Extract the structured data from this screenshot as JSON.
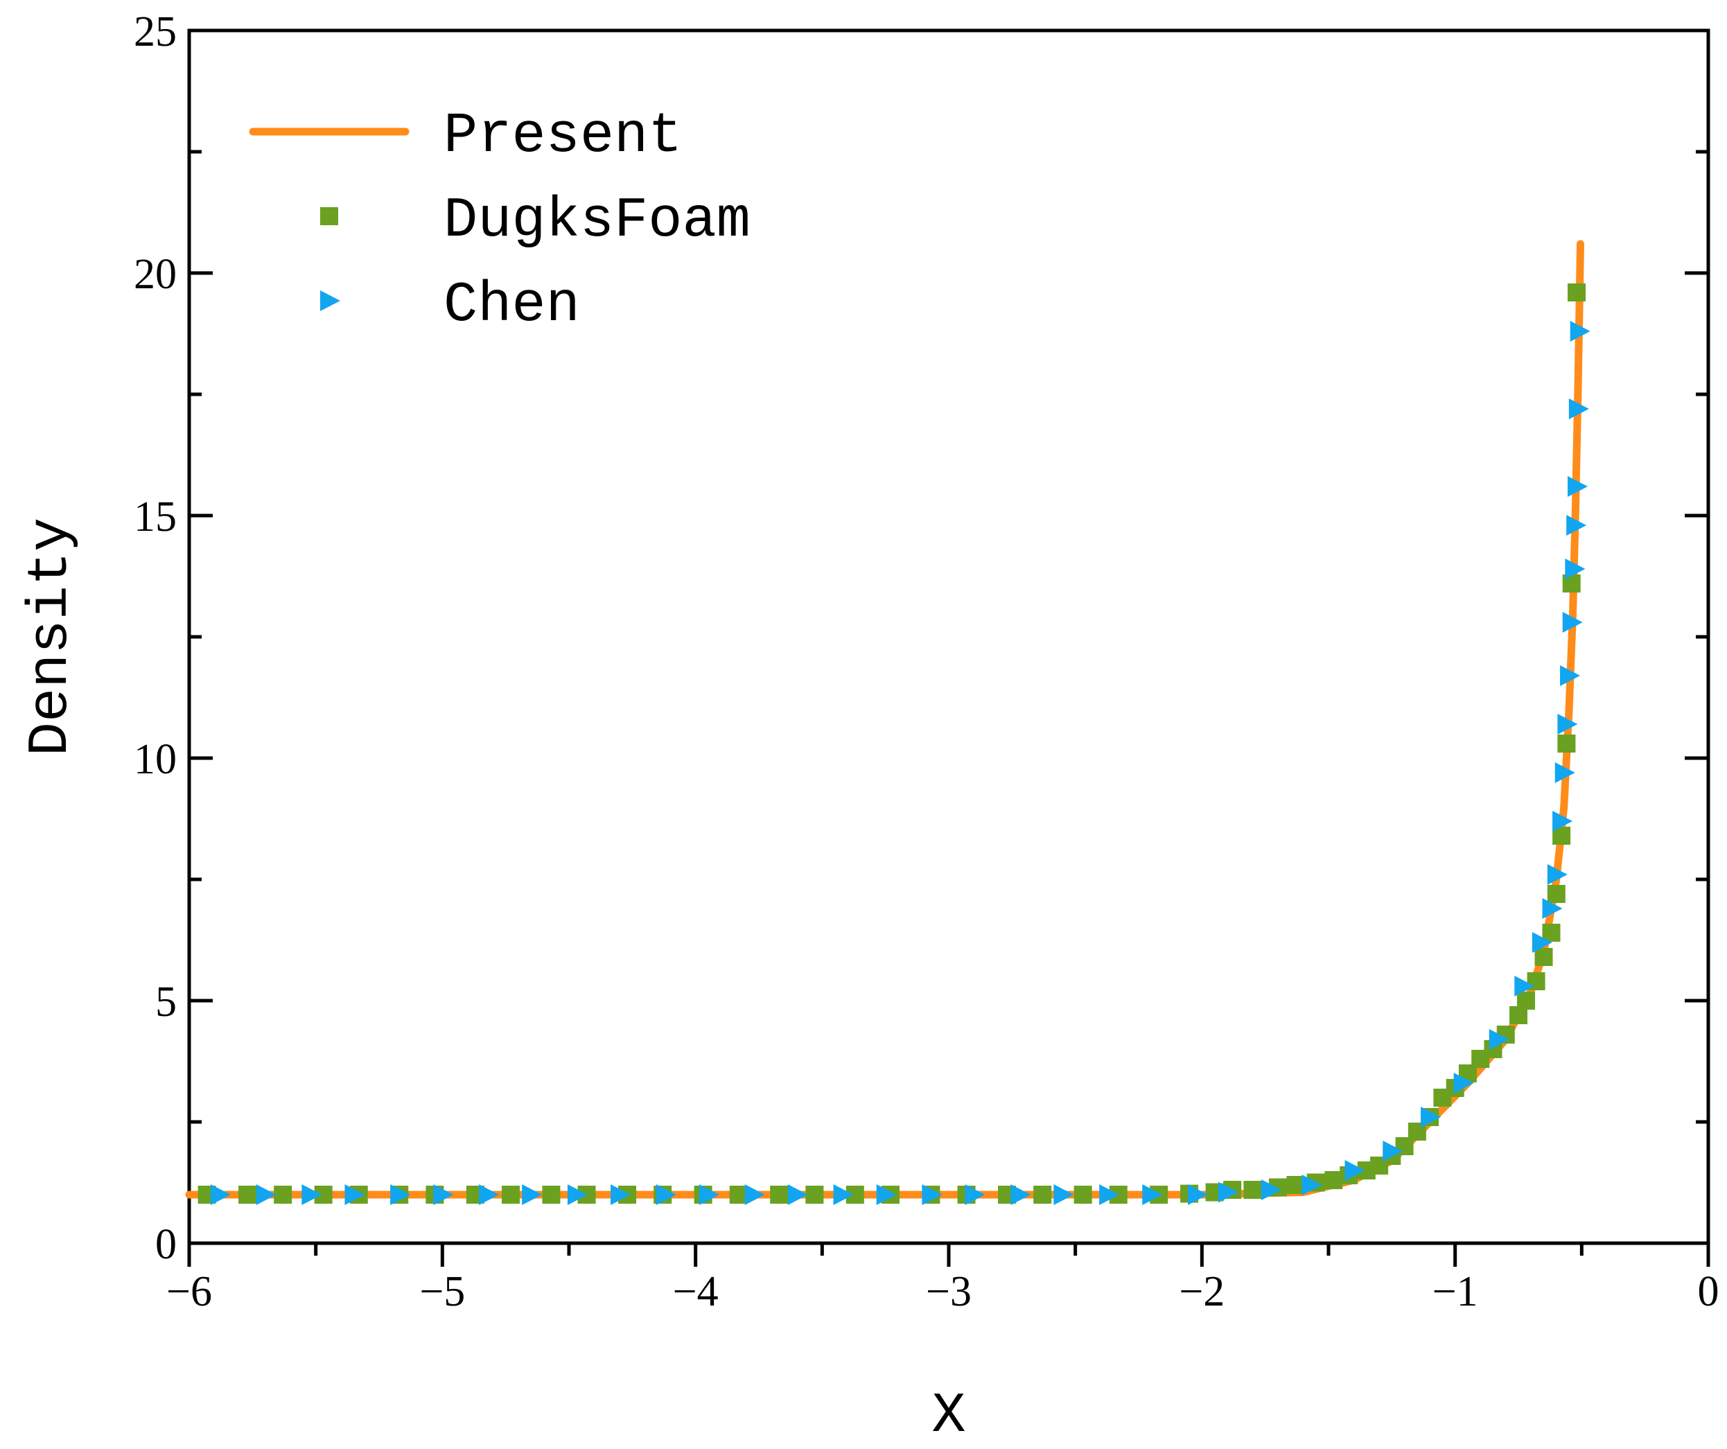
{
  "chart_data": {
    "type": "line",
    "xlabel": "X",
    "ylabel": "Density",
    "xlim": [
      -6,
      0
    ],
    "ylim": [
      0,
      25
    ],
    "xticks": [
      {
        "value": -6,
        "label": "−6"
      },
      {
        "value": -5,
        "label": "−5"
      },
      {
        "value": -4,
        "label": "−4"
      },
      {
        "value": -3,
        "label": "−3"
      },
      {
        "value": -2,
        "label": "−2"
      },
      {
        "value": -1,
        "label": "−1"
      },
      0
    ],
    "yticks": [
      0,
      5,
      10,
      15,
      20,
      25
    ],
    "legend": "upper left",
    "series": [
      {
        "name": "Present",
        "color": "#ff8c1a",
        "style": "line",
        "x": [
          -6,
          -2,
          -1.6,
          -1.4,
          -1.25,
          -1.1,
          -0.95,
          -0.8,
          -0.7,
          -0.65,
          -0.6,
          -0.57,
          -0.55,
          -0.535,
          -0.525,
          -0.515,
          -0.51,
          -0.505
        ],
        "values": [
          1,
          1,
          1.05,
          1.3,
          1.7,
          2.5,
          3.3,
          4.2,
          5.2,
          6,
          7.5,
          9,
          11,
          13,
          15,
          17.5,
          19,
          20.6
        ]
      },
      {
        "name": "DugksFoam",
        "color": "#6aa121",
        "style": "square",
        "x": [
          -5.93,
          -5.77,
          -5.63,
          -5.47,
          -5.33,
          -5.17,
          -5.03,
          -4.87,
          -4.73,
          -4.57,
          -4.43,
          -4.27,
          -4.13,
          -3.97,
          -3.83,
          -3.67,
          -3.53,
          -3.37,
          -3.23,
          -3.07,
          -2.93,
          -2.77,
          -2.63,
          -2.47,
          -2.33,
          -2.17,
          -2.05,
          -1.95,
          -1.88,
          -1.8,
          -1.7,
          -1.63,
          -1.55,
          -1.48,
          -1.42,
          -1.35,
          -1.3,
          -1.25,
          -1.2,
          -1.15,
          -1.1,
          -1.05,
          -1.0,
          -0.95,
          -0.9,
          -0.85,
          -0.8,
          -0.75,
          -0.72,
          -0.68,
          -0.65,
          -0.62,
          -0.6,
          -0.58,
          -0.56,
          -0.54,
          -0.52
        ],
        "values": [
          1,
          1,
          1,
          1,
          1,
          1,
          1,
          1,
          1,
          1,
          1,
          1,
          1,
          1,
          1,
          1,
          1,
          1,
          1,
          1,
          1,
          1,
          1,
          1,
          1,
          1,
          1.02,
          1.05,
          1.1,
          1.1,
          1.15,
          1.2,
          1.25,
          1.3,
          1.4,
          1.5,
          1.6,
          1.8,
          2.0,
          2.3,
          2.6,
          3.0,
          3.2,
          3.5,
          3.8,
          4.0,
          4.3,
          4.7,
          5.0,
          5.4,
          5.9,
          6.4,
          7.2,
          8.4,
          10.3,
          13.6,
          19.6
        ]
      },
      {
        "name": "Chen",
        "color": "#12a5f0",
        "style": "triangle",
        "x": [
          -5.88,
          -5.7,
          -5.52,
          -5.35,
          -5.17,
          -5.0,
          -4.82,
          -4.65,
          -4.47,
          -4.3,
          -4.12,
          -3.95,
          -3.77,
          -3.6,
          -3.42,
          -3.25,
          -3.07,
          -2.9,
          -2.72,
          -2.55,
          -2.37,
          -2.2,
          -2.02,
          -1.9,
          -1.73,
          -1.57,
          -1.4,
          -1.25,
          -1.1,
          -0.97,
          -0.83,
          -0.73,
          -0.66,
          -0.62,
          -0.6,
          -0.58,
          -0.57,
          -0.56,
          -0.55,
          -0.54,
          -0.53,
          -0.525,
          -0.52,
          -0.515,
          -0.51
        ],
        "values": [
          1,
          1,
          1,
          1,
          1,
          1,
          1,
          1,
          1,
          1,
          1,
          1,
          1,
          1,
          1,
          1,
          1,
          1,
          1,
          1,
          1,
          1,
          1,
          1.05,
          1.1,
          1.2,
          1.5,
          1.9,
          2.6,
          3.3,
          4.2,
          5.3,
          6.2,
          6.9,
          7.6,
          8.7,
          9.7,
          10.7,
          11.7,
          12.8,
          13.9,
          14.8,
          15.6,
          17.2,
          18.8
        ]
      }
    ]
  }
}
